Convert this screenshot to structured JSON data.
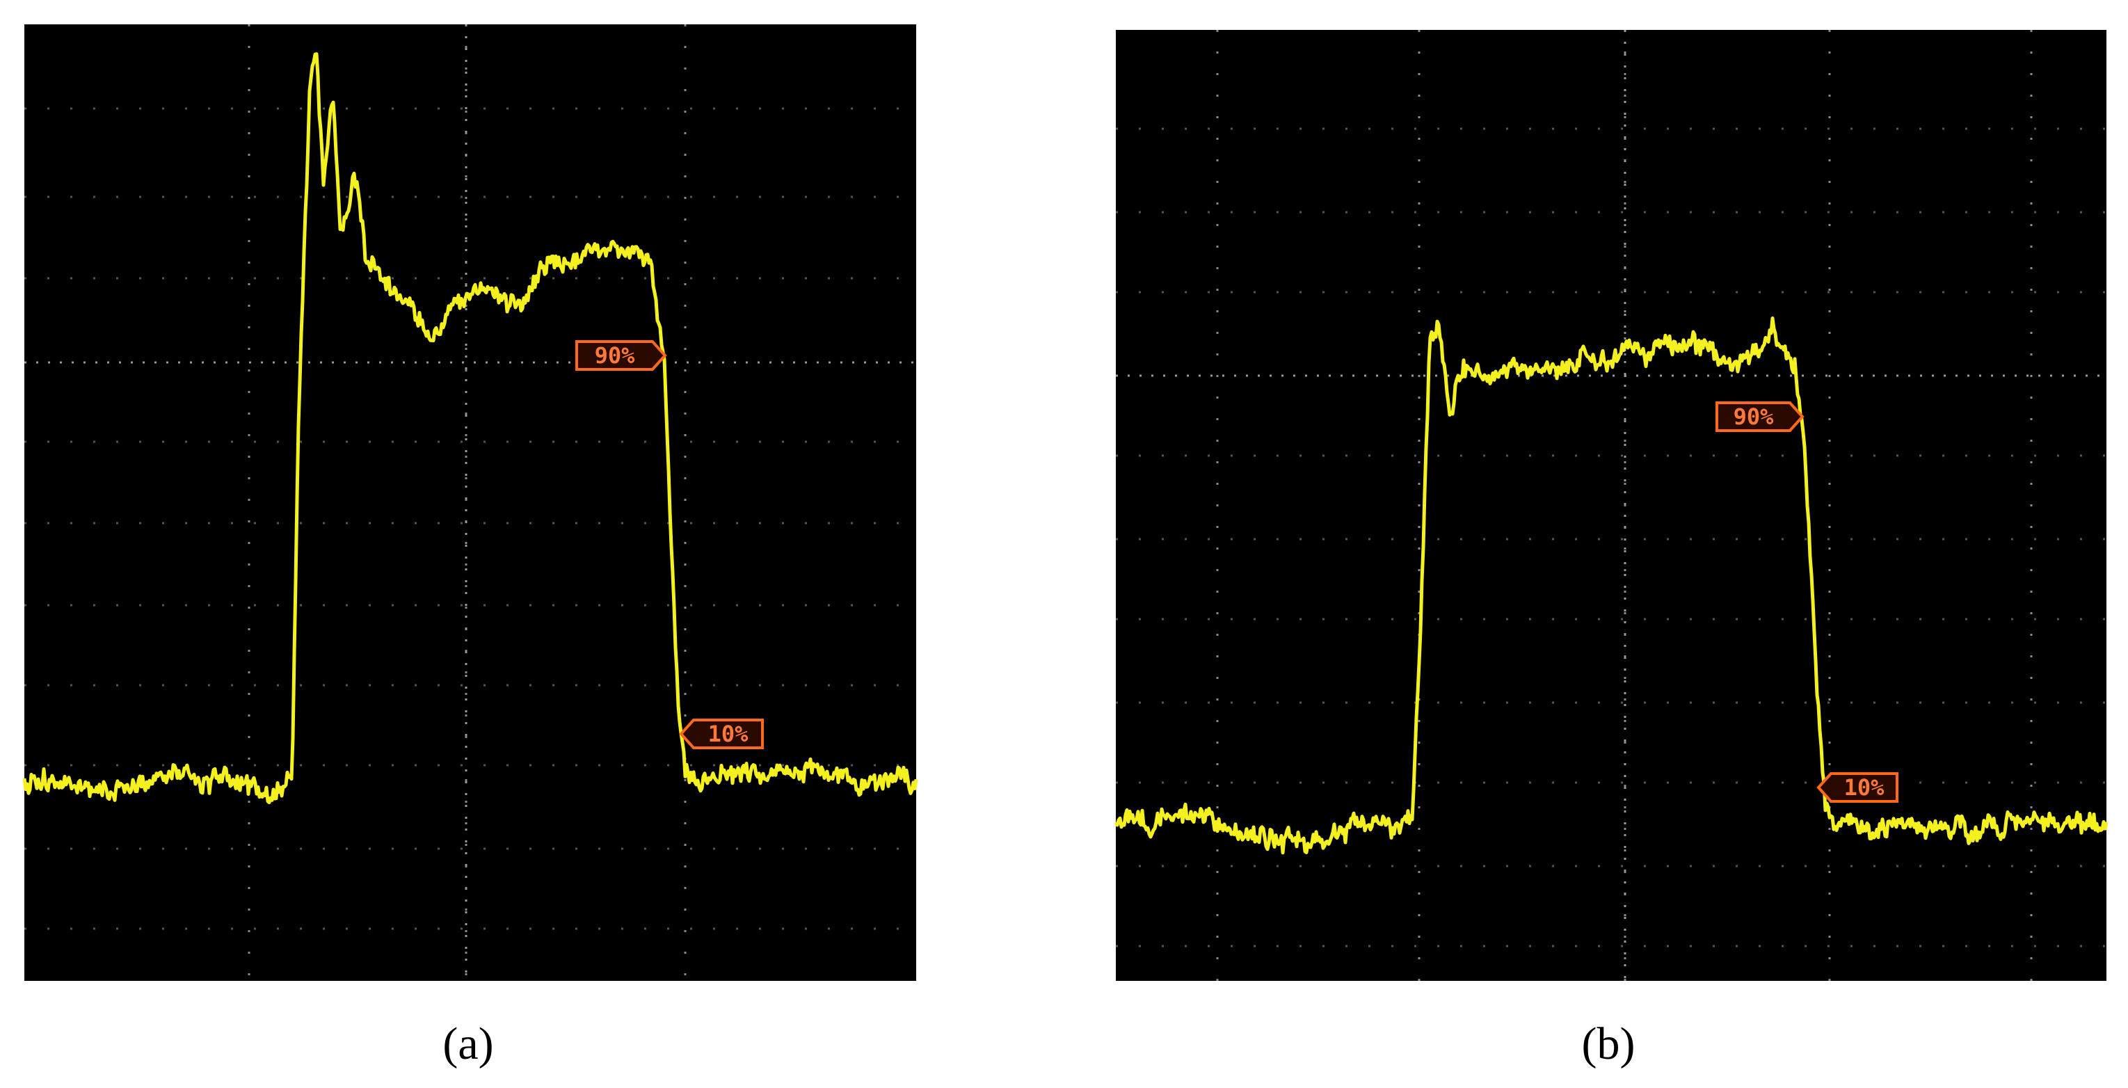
{
  "panels": [
    {
      "label": "(a)",
      "markers": [
        "90%",
        "10%"
      ]
    },
    {
      "label": "(b)",
      "markers": [
        "90%",
        "10%"
      ]
    }
  ]
}
